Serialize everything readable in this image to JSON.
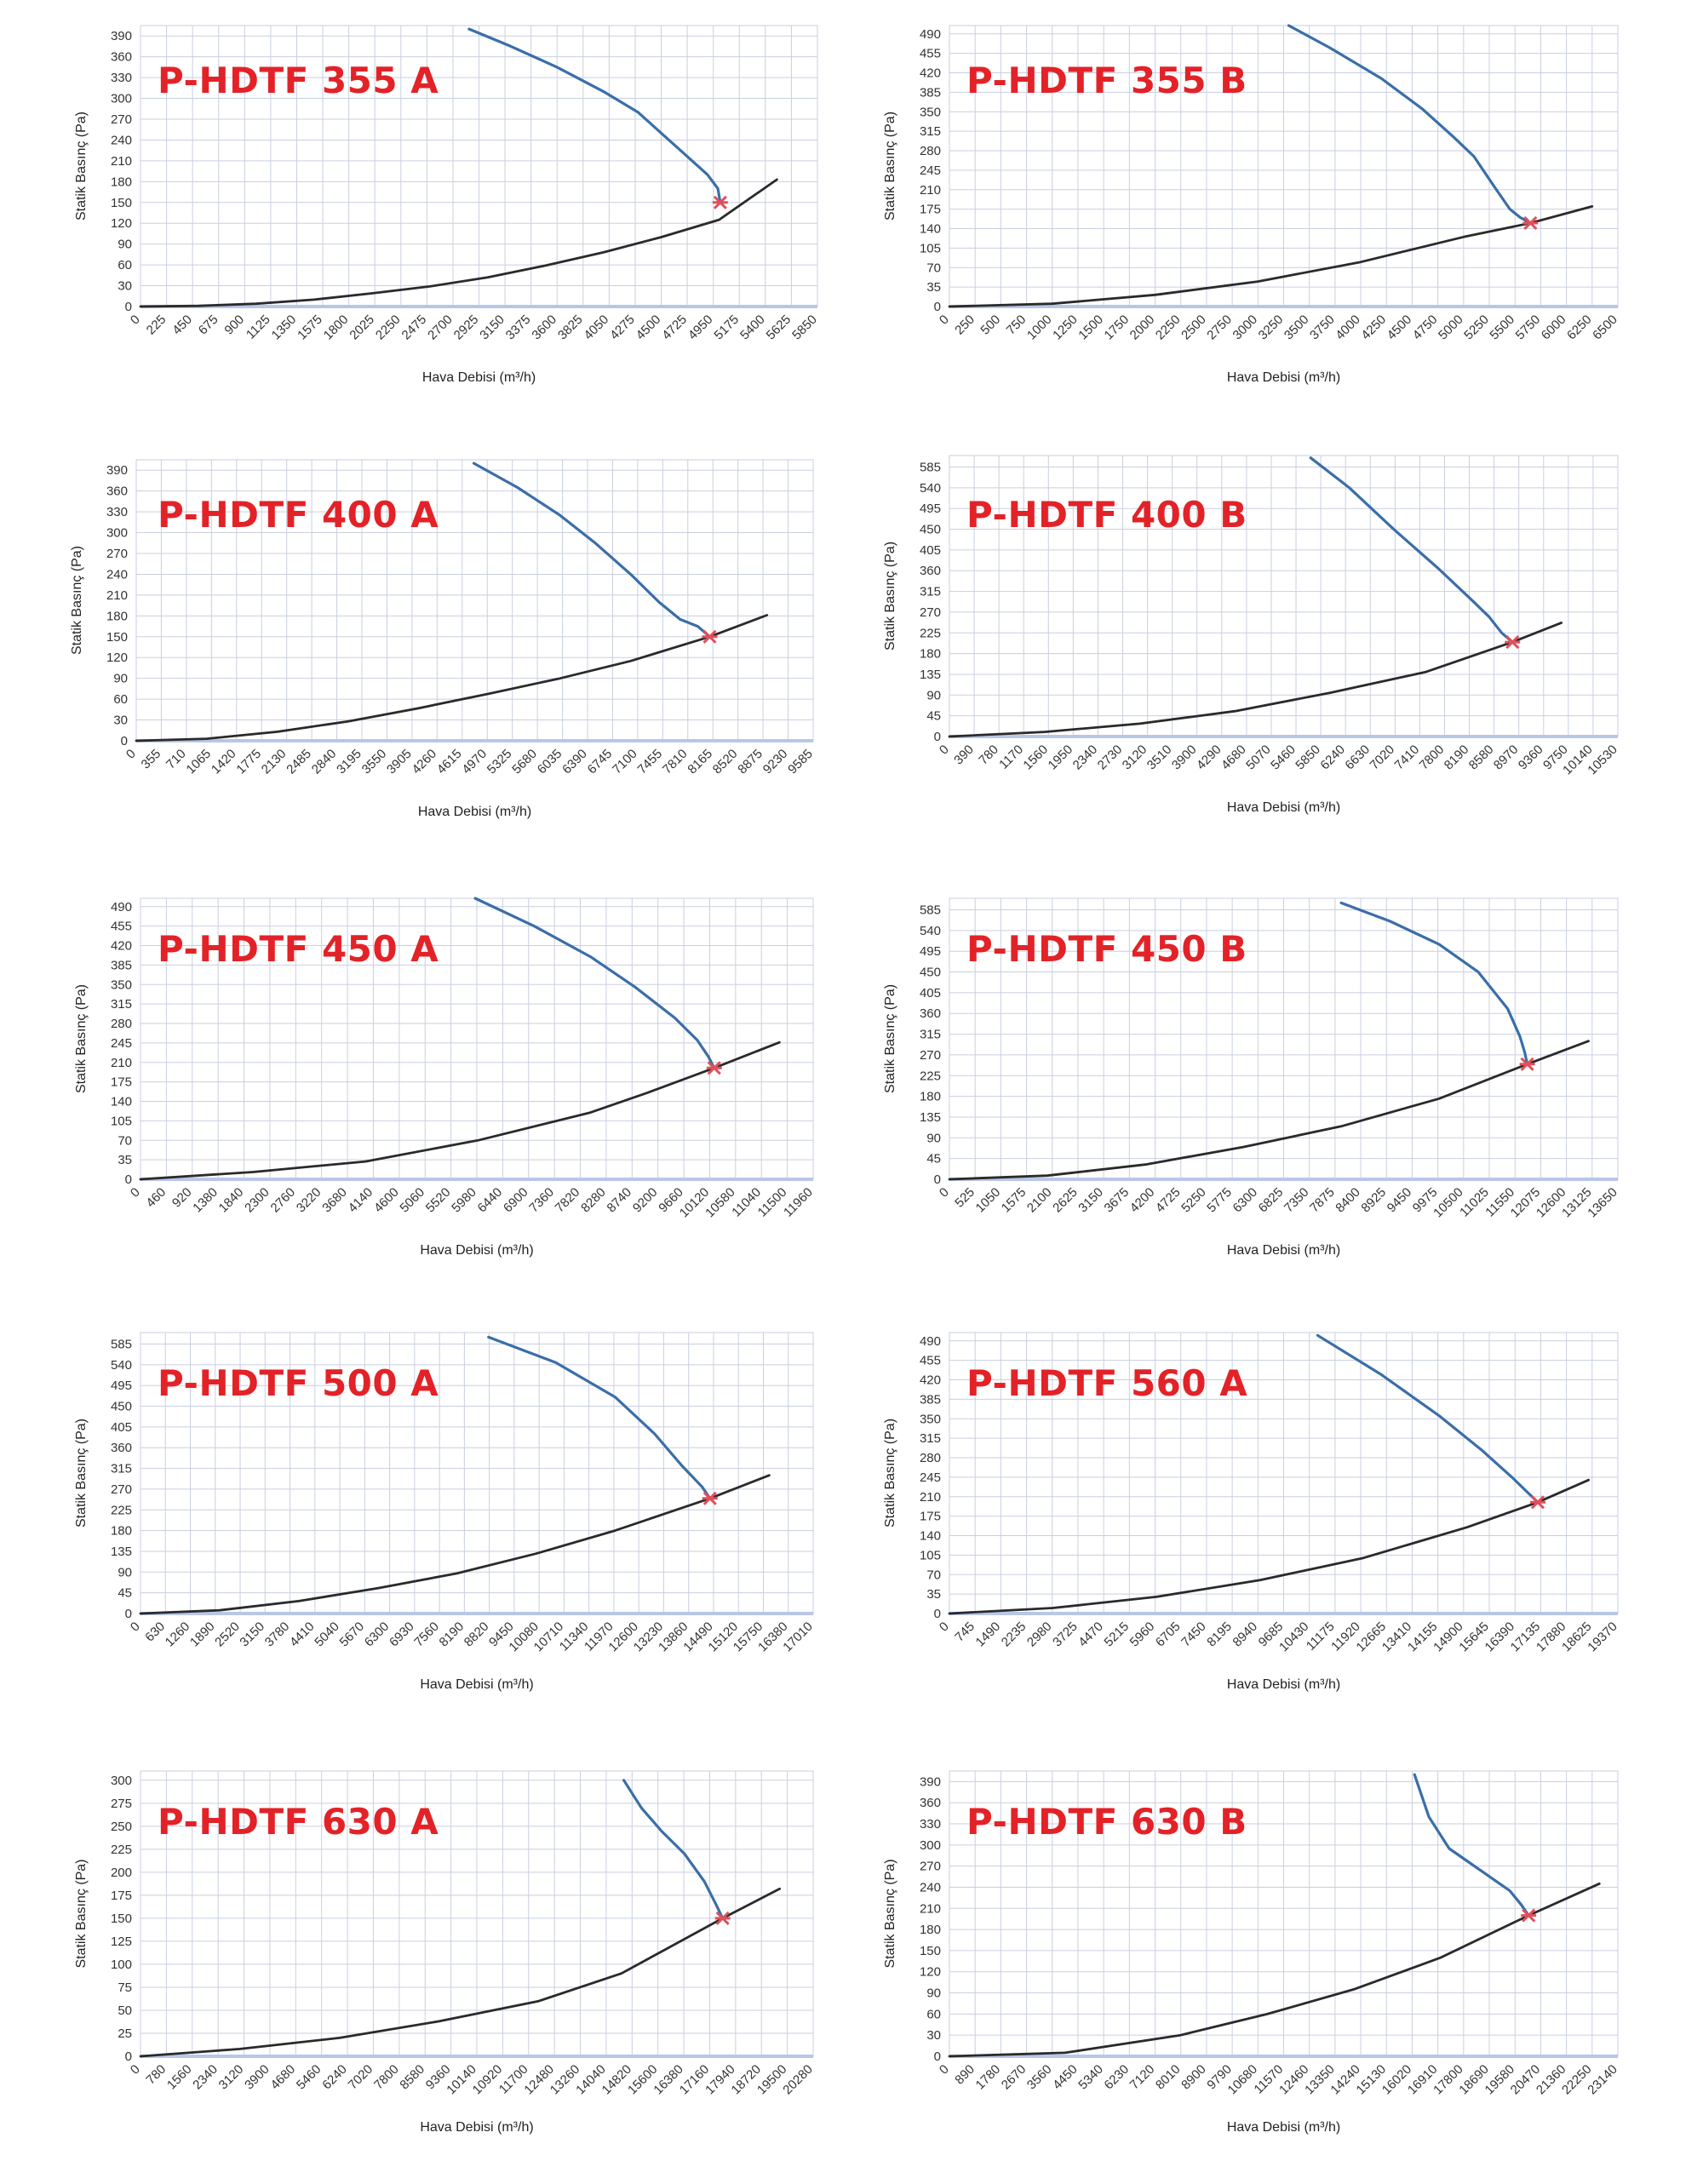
{
  "colors": {
    "title": "#e32228",
    "fan_curve": "#3a6ea8",
    "system_curve": "#2a2a2a",
    "marker": "#e0505a",
    "grid": "#c9cfe0",
    "axis_base": "#b8c6e8"
  },
  "chart_data": [
    {
      "type": "line",
      "title": "P-HDTF 355 A",
      "xlabel": "Hava Debisi (m³/h)",
      "ylabel": "Statik Basınç (Pa)",
      "xticks": [
        0,
        225,
        450,
        675,
        900,
        1125,
        1350,
        1575,
        1800,
        2025,
        2250,
        2475,
        2700,
        2925,
        3150,
        3375,
        3600,
        3825,
        4050,
        4275,
        4500,
        4725,
        4950,
        5175,
        5400,
        5625,
        5850
      ],
      "yticks": [
        0,
        30,
        60,
        90,
        120,
        150,
        180,
        210,
        240,
        270,
        300,
        330,
        360,
        390
      ],
      "xlim": [
        0,
        5850
      ],
      "ylim": [
        0,
        405
      ],
      "series": [
        {
          "x": [
            2840,
            3200,
            3600,
            4000,
            4300,
            4500,
            4700,
            4900,
            4990,
            5010
          ],
          "y": [
            400,
            375,
            345,
            310,
            280,
            250,
            220,
            190,
            170,
            150
          ]
        },
        {
          "x": [
            0,
            500,
            1000,
            1500,
            2000,
            2500,
            3000,
            3500,
            4000,
            4500,
            5000,
            5500
          ],
          "y": [
            0,
            1,
            4,
            10,
            19,
            29,
            42,
            59,
            78,
            100,
            125,
            183
          ]
        }
      ],
      "points": [
        {
          "x": 5010,
          "y": 150
        }
      ]
    },
    {
      "type": "line",
      "title": "P-HDTF 355 B",
      "xlabel": "Hava Debisi (m³/h)",
      "ylabel": "Statik Basınç (Pa)",
      "xticks": [
        0,
        250,
        500,
        750,
        1000,
        1250,
        1500,
        1750,
        2000,
        2250,
        2500,
        2750,
        3000,
        3250,
        3500,
        3750,
        4000,
        4250,
        4500,
        4750,
        5000,
        5250,
        5500,
        5750,
        6000,
        6250,
        6500
      ],
      "yticks": [
        0,
        35,
        70,
        105,
        140,
        175,
        210,
        245,
        280,
        315,
        350,
        385,
        420,
        455,
        490
      ],
      "xlim": [
        0,
        6500
      ],
      "ylim": [
        0,
        505
      ],
      "series": [
        {
          "x": [
            3300,
            3700,
            4200,
            4600,
            4900,
            5100,
            5300,
            5450,
            5550,
            5650
          ],
          "y": [
            505,
            465,
            410,
            355,
            305,
            270,
            215,
            175,
            160,
            150
          ]
        },
        {
          "x": [
            0,
            1000,
            2000,
            3000,
            4000,
            5000,
            5650,
            6250
          ],
          "y": [
            0,
            5,
            21,
            45,
            80,
            125,
            150,
            180
          ]
        }
      ],
      "points": [
        {
          "x": 5650,
          "y": 150
        }
      ]
    },
    {
      "type": "line",
      "title": "P-HDTF 400 A",
      "xlabel": "Hava Debisi (m³/h)",
      "ylabel": "Statik Basınç (Pa)",
      "xticks": [
        0,
        355,
        710,
        1065,
        1420,
        1775,
        2130,
        2485,
        2840,
        3195,
        3550,
        3905,
        4260,
        4615,
        4970,
        5325,
        5680,
        6035,
        6390,
        6745,
        7100,
        7455,
        7810,
        8165,
        8520,
        8875,
        9230,
        9585
      ],
      "yticks": [
        0,
        30,
        60,
        90,
        120,
        150,
        180,
        210,
        240,
        270,
        300,
        330,
        360,
        390
      ],
      "xlim": [
        0,
        9585
      ],
      "ylim": [
        0,
        405
      ],
      "series": [
        {
          "x": [
            4780,
            5400,
            6000,
            6500,
            7000,
            7400,
            7700,
            7950,
            8120
          ],
          "y": [
            400,
            365,
            325,
            285,
            240,
            200,
            175,
            165,
            150
          ]
        },
        {
          "x": [
            0,
            1000,
            2000,
            3000,
            4000,
            5000,
            6000,
            7000,
            8120,
            8930
          ],
          "y": [
            0,
            3,
            13,
            28,
            47,
            68,
            90,
            115,
            150,
            181
          ]
        }
      ],
      "points": [
        {
          "x": 8120,
          "y": 150
        }
      ]
    },
    {
      "type": "line",
      "title": "P-HDTF 400 B",
      "xlabel": "Hava Debisi (m³/h)",
      "ylabel": "Statik Basınç (Pa)",
      "xticks": [
        0,
        390,
        780,
        1170,
        1560,
        1950,
        2340,
        2730,
        3120,
        3510,
        3900,
        4290,
        4680,
        5070,
        5460,
        5850,
        6240,
        6630,
        7020,
        7410,
        7800,
        8190,
        8580,
        8970,
        9360,
        9750,
        10140,
        10530
      ],
      "yticks": [
        0,
        45,
        90,
        135,
        180,
        225,
        270,
        315,
        360,
        405,
        450,
        495,
        540,
        585
      ],
      "xlim": [
        0,
        10530
      ],
      "ylim": [
        0,
        610
      ],
      "series": [
        {
          "x": [
            5690,
            6300,
            7000,
            7700,
            8200,
            8500,
            8700,
            8870
          ],
          "y": [
            605,
            540,
            450,
            365,
            300,
            260,
            225,
            205
          ]
        },
        {
          "x": [
            0,
            1500,
            3000,
            4500,
            6000,
            7500,
            8870,
            9640
          ],
          "y": [
            0,
            10,
            28,
            55,
            95,
            140,
            205,
            247
          ]
        }
      ],
      "points": [
        {
          "x": 8870,
          "y": 205
        }
      ]
    },
    {
      "type": "line",
      "title": "P-HDTF 450 A",
      "xlabel": "Hava Debisi (m³/h)",
      "ylabel": "Statik Basınç (Pa)",
      "xticks": [
        0,
        460,
        920,
        1380,
        1840,
        2300,
        2760,
        3220,
        3680,
        4140,
        4600,
        5060,
        5520,
        5980,
        6440,
        6900,
        7360,
        7820,
        8280,
        8740,
        9200,
        9660,
        10120,
        10580,
        11040,
        11500,
        11960
      ],
      "yticks": [
        0,
        35,
        70,
        105,
        140,
        175,
        210,
        245,
        280,
        315,
        350,
        385,
        420,
        455,
        490
      ],
      "xlim": [
        0,
        11960
      ],
      "ylim": [
        0,
        505
      ],
      "series": [
        {
          "x": [
            5950,
            7000,
            8000,
            8800,
            9500,
            9900,
            10100,
            10200
          ],
          "y": [
            505,
            455,
            400,
            345,
            290,
            250,
            220,
            200
          ]
        },
        {
          "x": [
            0,
            2000,
            4000,
            6000,
            8000,
            9000,
            10200,
            11360
          ],
          "y": [
            0,
            13,
            32,
            70,
            120,
            155,
            200,
            246
          ]
        }
      ],
      "points": [
        {
          "x": 10200,
          "y": 200
        }
      ]
    },
    {
      "type": "line",
      "title": "P-HDTF 450 B",
      "xlabel": "Hava Debisi (m³/h)",
      "ylabel": "Statik Basınç (Pa)",
      "xticks": [
        0,
        525,
        1050,
        1575,
        2100,
        2625,
        3150,
        3675,
        4200,
        4725,
        5250,
        5775,
        6300,
        6825,
        7350,
        7875,
        8400,
        8925,
        9450,
        9975,
        10500,
        11025,
        11550,
        12075,
        12600,
        13125,
        13650
      ],
      "yticks": [
        0,
        45,
        90,
        135,
        180,
        225,
        270,
        315,
        360,
        405,
        450,
        495,
        540,
        585
      ],
      "xlim": [
        0,
        13650
      ],
      "ylim": [
        0,
        610
      ],
      "series": [
        {
          "x": [
            8000,
            9000,
            10000,
            10800,
            11400,
            11650,
            11750,
            11800
          ],
          "y": [
            600,
            560,
            510,
            450,
            370,
            310,
            275,
            250
          ]
        },
        {
          "x": [
            0,
            2000,
            4000,
            6000,
            8000,
            10000,
            11800,
            13050
          ],
          "y": [
            0,
            8,
            32,
            70,
            115,
            175,
            250,
            300
          ]
        }
      ],
      "points": [
        {
          "x": 11800,
          "y": 250
        }
      ]
    },
    {
      "type": "line",
      "title": "P-HDTF 500 A",
      "xlabel": "Hava Debisi (m³/h)",
      "ylabel": "Statik Basınç (Pa)",
      "xticks": [
        0,
        630,
        1260,
        1890,
        2520,
        3150,
        3780,
        4410,
        5040,
        5670,
        6300,
        6930,
        7560,
        8190,
        8820,
        9450,
        10080,
        10710,
        11340,
        11970,
        12600,
        13230,
        13860,
        14490,
        15120,
        15750,
        16380,
        17010
      ],
      "yticks": [
        0,
        45,
        90,
        135,
        180,
        225,
        270,
        315,
        360,
        405,
        450,
        495,
        540,
        585
      ],
      "xlim": [
        0,
        17010
      ],
      "ylim": [
        0,
        610
      ],
      "series": [
        {
          "x": [
            8800,
            10500,
            12000,
            13000,
            13700,
            14200,
            14400
          ],
          "y": [
            600,
            545,
            470,
            390,
            320,
            275,
            250
          ]
        },
        {
          "x": [
            0,
            2000,
            4000,
            6000,
            8000,
            10000,
            12000,
            14400,
            15900
          ],
          "y": [
            0,
            7,
            27,
            55,
            87,
            130,
            180,
            250,
            300
          ]
        }
      ],
      "points": [
        {
          "x": 14400,
          "y": 250
        }
      ]
    },
    {
      "type": "line",
      "title": "P-HDTF 560 A",
      "xlabel": "Hava Debisi (m³/h)",
      "ylabel": "Statik Basınç (Pa)",
      "xticks": [
        0,
        745,
        1490,
        2235,
        2980,
        3725,
        4470,
        5215,
        5960,
        6705,
        7450,
        8195,
        8940,
        9685,
        10430,
        11175,
        11920,
        12665,
        13410,
        14155,
        14900,
        15645,
        16390,
        17135,
        17880,
        18625,
        19370
      ],
      "yticks": [
        0,
        35,
        70,
        105,
        140,
        175,
        210,
        245,
        280,
        315,
        350,
        385,
        420,
        455,
        490
      ],
      "xlim": [
        0,
        19370
      ],
      "ylim": [
        0,
        505
      ],
      "series": [
        {
          "x": [
            10670,
            12500,
            14200,
            15400,
            16300,
            16800,
            17050
          ],
          "y": [
            500,
            430,
            355,
            295,
            245,
            215,
            200
          ]
        },
        {
          "x": [
            0,
            3000,
            6000,
            9000,
            12000,
            15000,
            17050,
            18520
          ],
          "y": [
            0,
            10,
            30,
            60,
            100,
            155,
            200,
            240
          ]
        }
      ],
      "points": [
        {
          "x": 17050,
          "y": 200
        }
      ]
    },
    {
      "type": "line",
      "title": "P-HDTF 630 A",
      "xlabel": "Hava Debisi (m³/h)",
      "ylabel": "Statik Basınç (Pa)",
      "xticks": [
        0,
        780,
        1560,
        2340,
        3120,
        3900,
        4680,
        5460,
        6240,
        7020,
        7800,
        8580,
        9360,
        10140,
        10920,
        11700,
        12480,
        13260,
        14040,
        14820,
        15600,
        16380,
        17160,
        17940,
        18720,
        19500,
        20280
      ],
      "yticks": [
        0,
        25,
        50,
        75,
        100,
        125,
        150,
        175,
        200,
        225,
        250,
        275,
        300
      ],
      "xlim": [
        0,
        20280
      ],
      "ylim": [
        0,
        310
      ],
      "series": [
        {
          "x": [
            14570,
            15100,
            15700,
            16400,
            17000,
            17350,
            17550
          ],
          "y": [
            300,
            270,
            245,
            220,
            190,
            165,
            150
          ]
        },
        {
          "x": [
            0,
            3000,
            6000,
            9000,
            12000,
            14500,
            17550,
            19270
          ],
          "y": [
            0,
            8,
            20,
            38,
            60,
            90,
            150,
            182
          ]
        }
      ],
      "points": [
        {
          "x": 17550,
          "y": 150
        }
      ]
    },
    {
      "type": "line",
      "title": "P-HDTF 630 B",
      "xlabel": "Hava Debisi (m³/h)",
      "ylabel": "Statik Basınç (Pa)",
      "xticks": [
        0,
        890,
        1780,
        2670,
        3560,
        4450,
        5340,
        6230,
        7120,
        8010,
        8900,
        9790,
        10680,
        11570,
        12460,
        13350,
        14240,
        15130,
        16020,
        16910,
        17800,
        18690,
        19580,
        20470,
        21360,
        22250,
        23140
      ],
      "yticks": [
        0,
        30,
        60,
        90,
        120,
        150,
        180,
        210,
        240,
        270,
        300,
        330,
        360,
        390
      ],
      "xlim": [
        0,
        23140
      ],
      "ylim": [
        0,
        405
      ],
      "series": [
        {
          "x": [
            16100,
            16600,
            17300,
            18000,
            18700,
            19400,
            19800,
            20050
          ],
          "y": [
            400,
            340,
            295,
            275,
            255,
            235,
            215,
            200
          ]
        },
        {
          "x": [
            0,
            4000,
            8000,
            11000,
            14000,
            17000,
            20050,
            22500
          ],
          "y": [
            0,
            5,
            30,
            60,
            95,
            140,
            200,
            245
          ]
        }
      ],
      "points": [
        {
          "x": 20050,
          "y": 200
        }
      ]
    }
  ]
}
